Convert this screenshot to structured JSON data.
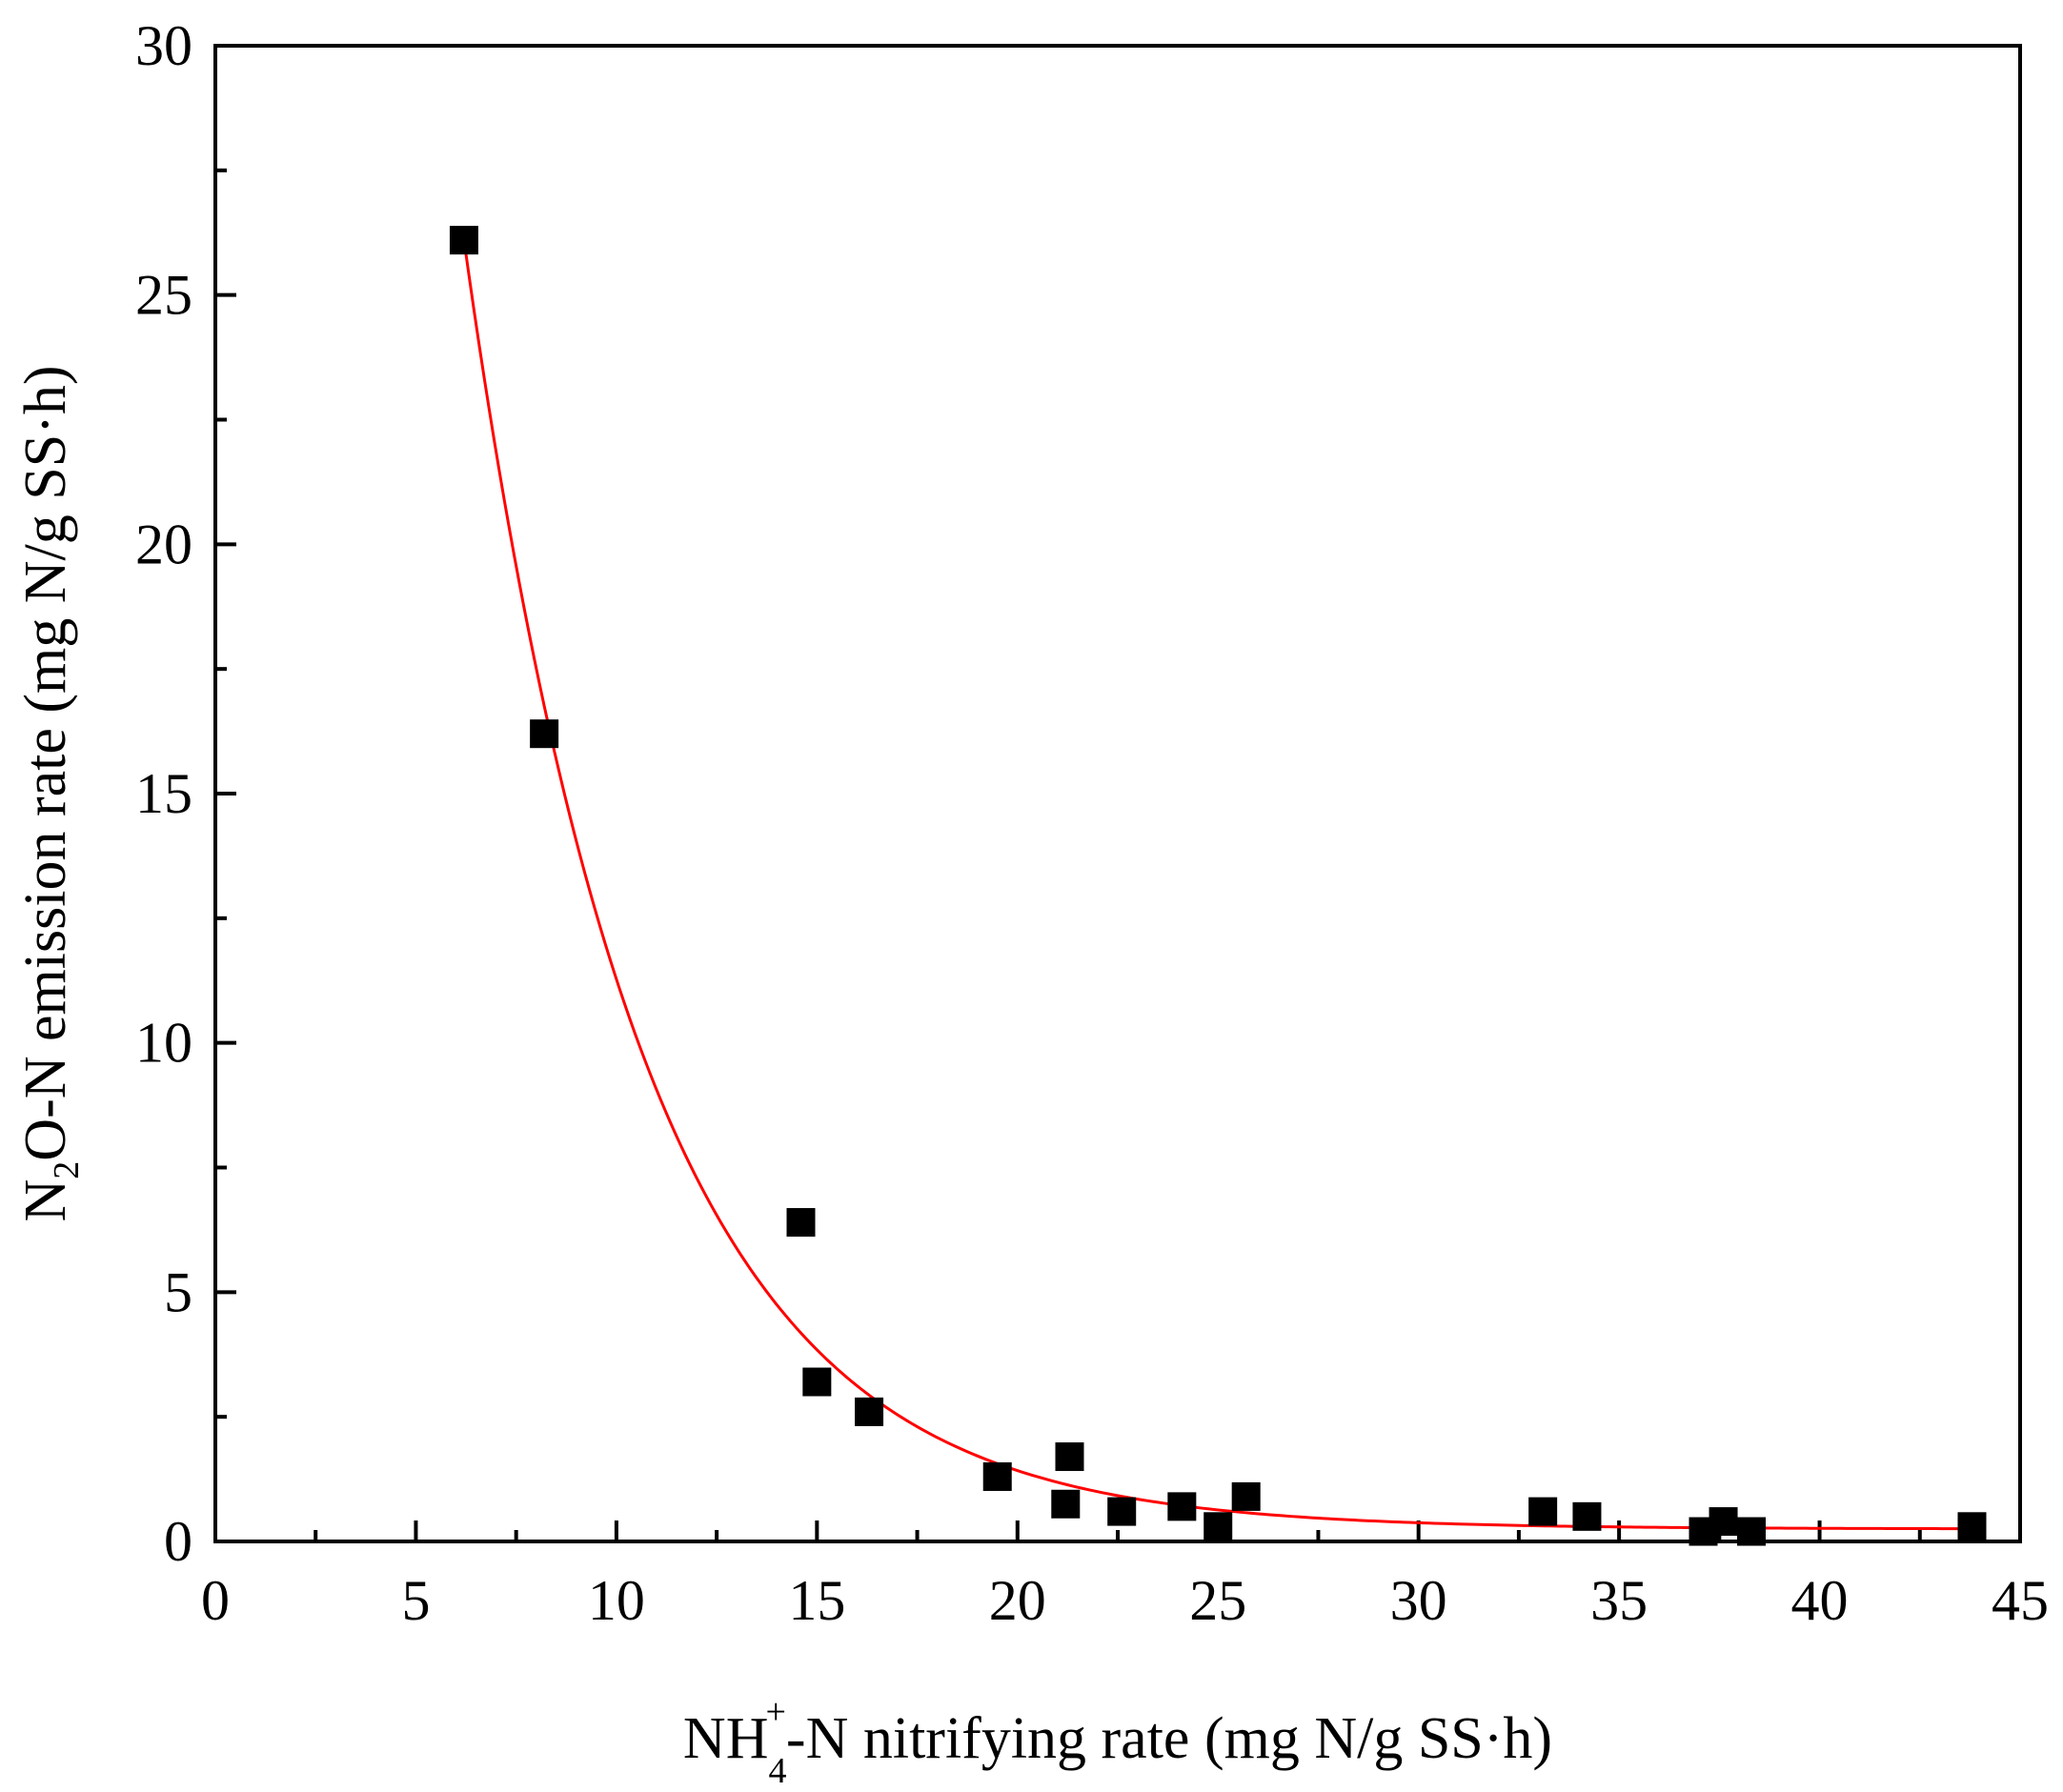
{
  "chart_data": {
    "type": "scatter",
    "xlabel_parts": [
      "NH",
      "4",
      "+",
      "-N nitrifying rate (mg N/g SS·h)"
    ],
    "ylabel_parts": [
      "N",
      "2",
      "O-N emission rate (mg N/g SS·h)"
    ],
    "xlim": [
      0,
      45
    ],
    "ylim": [
      0,
      30
    ],
    "xticks": [
      0,
      5,
      10,
      15,
      20,
      25,
      30,
      35,
      40,
      45
    ],
    "yticks": [
      0,
      5,
      10,
      15,
      20,
      25,
      30
    ],
    "x_tick_labels": [
      "0",
      "5",
      "10",
      "15",
      "20",
      "25",
      "30",
      "35",
      "40",
      "45"
    ],
    "y_tick_labels": [
      "0",
      "5",
      "10",
      "15",
      "20",
      "25",
      "30"
    ],
    "grid": false,
    "series": [
      {
        "name": "data",
        "marker": "square",
        "color": "#000000",
        "x": [
          6.2,
          8.2,
          14.6,
          15.0,
          16.3,
          19.5,
          21.2,
          21.3,
          22.6,
          24.1,
          25.0,
          25.7,
          33.1,
          34.2,
          37.1,
          37.6,
          38.3,
          43.8
        ],
        "y": [
          26.1,
          16.2,
          6.4,
          3.2,
          2.6,
          1.3,
          0.75,
          1.7,
          0.6,
          0.7,
          0.3,
          0.9,
          0.6,
          0.5,
          0.2,
          0.4,
          0.2,
          0.3
        ]
      },
      {
        "name": "exponential fit",
        "type": "line",
        "color": "#ff0000",
        "model": "y = y0 + A*exp(-(x - 6.2)/t)",
        "params": {
          "y0": 0.25,
          "A": 25.85,
          "t": 4.46
        },
        "x_range": [
          6.2,
          43.8
        ]
      }
    ]
  }
}
